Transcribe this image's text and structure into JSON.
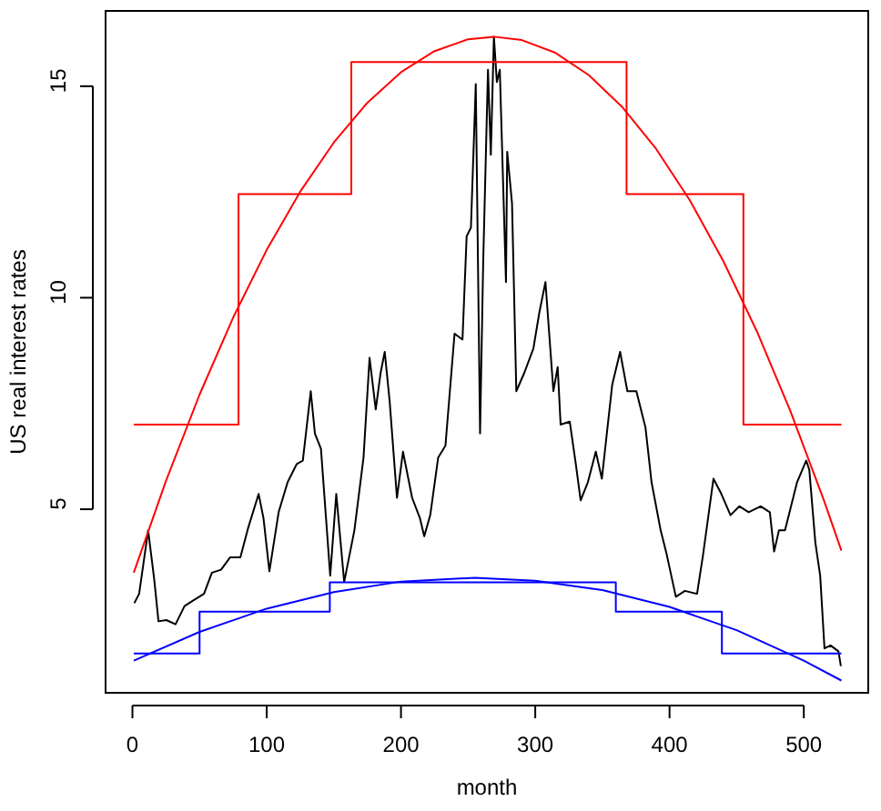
{
  "chart_data": {
    "type": "line",
    "xlabel": "month",
    "ylabel": "US real interest rates",
    "xlim": [
      -20,
      548
    ],
    "ylim": [
      0.66,
      16.78
    ],
    "xticks": [
      0,
      100,
      200,
      300,
      400,
      500
    ],
    "yticks": [
      5,
      10,
      15
    ],
    "marker": "none",
    "line_style": "solid",
    "series": [
      {
        "color": "#000000",
        "x": [
          1.4,
          5,
          11.7,
          16.2,
          19.4,
          25.3,
          32.1,
          38.8,
          45.6,
          53.3,
          59.2,
          66,
          72.7,
          80.4,
          86.3,
          94,
          97.6,
          102,
          108.9,
          115.6,
          122.4,
          126.9,
          132.8,
          135.9,
          140.4,
          147.3,
          151.8,
          157.7,
          165.3,
          172.1,
          176.6,
          181.2,
          184.8,
          187.9,
          191.5,
          197,
          201.5,
          208.3,
          214.1,
          217.3,
          221.8,
          227.7,
          233.1,
          239.9,
          245.8,
          248.9,
          252.1,
          255.7,
          258.9,
          261.2,
          264.8,
          266.9,
          269.2,
          271.4,
          273.6,
          278.2,
          279.1,
          282.7,
          285.9,
          291.8,
          298.6,
          303.1,
          307.6,
          313.5,
          316.7,
          318.9,
          325.7,
          330.2,
          333.8,
          339.2,
          345.1,
          349.6,
          357.3,
          363.2,
          368.6,
          375.3,
          382.1,
          386.6,
          393.4,
          397.9,
          404.7,
          411.5,
          420.5,
          425,
          432.7,
          438.6,
          445.4,
          452.1,
          458.9,
          467.9,
          474.7,
          477.9,
          481.5,
          486,
          495,
          501.8,
          504.1,
          508.6,
          512.2,
          515.4,
          519.9,
          525.8,
          527.6
        ],
        "values": [
          2.78,
          3.0,
          4.5,
          3.35,
          2.35,
          2.38,
          2.28,
          2.71,
          2.85,
          3.0,
          3.5,
          3.57,
          3.86,
          3.86,
          4.57,
          5.36,
          4.79,
          3.53,
          4.93,
          5.64,
          6.07,
          6.15,
          7.79,
          6.79,
          6.43,
          3.43,
          5.36,
          3.28,
          4.5,
          6.22,
          8.58,
          7.36,
          8.22,
          8.72,
          7.58,
          5.27,
          6.36,
          5.27,
          4.79,
          4.36,
          4.86,
          6.22,
          6.5,
          9.15,
          9.01,
          11.45,
          11.66,
          15.05,
          6.79,
          10.8,
          15.39,
          13.38,
          16.17,
          15.1,
          15.39,
          10.37,
          13.45,
          12.23,
          7.79,
          8.22,
          8.8,
          9.66,
          10.37,
          7.79,
          8.36,
          7.0,
          7.07,
          6.07,
          5.21,
          5.64,
          6.36,
          5.72,
          7.94,
          8.72,
          7.79,
          7.79,
          6.93,
          5.64,
          4.5,
          3.93,
          2.93,
          3.07,
          3.0,
          3.93,
          5.72,
          5.36,
          4.86,
          5.07,
          4.93,
          5.07,
          4.93,
          4.0,
          4.5,
          4.5,
          5.64,
          6.15,
          5.93,
          4.21,
          3.43,
          1.71,
          1.78,
          1.64,
          1.29
        ]
      },
      {
        "type": "step",
        "color": "#ff0000",
        "x": [
          1,
          79,
          163,
          368,
          455,
          528
        ],
        "values": [
          7,
          12.45,
          15.57,
          12.45,
          7,
          7
        ]
      },
      {
        "type": "step",
        "color": "#0000ff",
        "x": [
          1,
          50,
          147,
          360,
          439,
          528
        ],
        "values": [
          1.59,
          2.58,
          3.27,
          2.58,
          1.59,
          1.59
        ]
      },
      {
        "color": "#ff0000",
        "x": [
          1,
          25,
          50,
          75,
          100,
          125,
          150,
          175,
          200,
          225,
          250,
          269,
          290,
          315,
          340,
          365,
          390,
          415,
          440,
          465,
          490,
          515,
          528
        ],
        "values": [
          3.5,
          5.67,
          7.71,
          9.53,
          11.13,
          12.51,
          13.67,
          14.61,
          15.33,
          15.83,
          16.11,
          16.17,
          16.09,
          15.79,
          15.26,
          14.5,
          13.52,
          12.31,
          10.87,
          9.21,
          7.32,
          5.21,
          4.02
        ]
      },
      {
        "color": "#0000ff",
        "x": [
          1,
          50,
          100,
          150,
          200,
          255,
          300,
          350,
          400,
          450,
          500,
          528
        ],
        "values": [
          1.42,
          2.1,
          2.65,
          3.04,
          3.29,
          3.38,
          3.31,
          3.09,
          2.69,
          2.14,
          1.42,
          0.95
        ]
      }
    ]
  }
}
